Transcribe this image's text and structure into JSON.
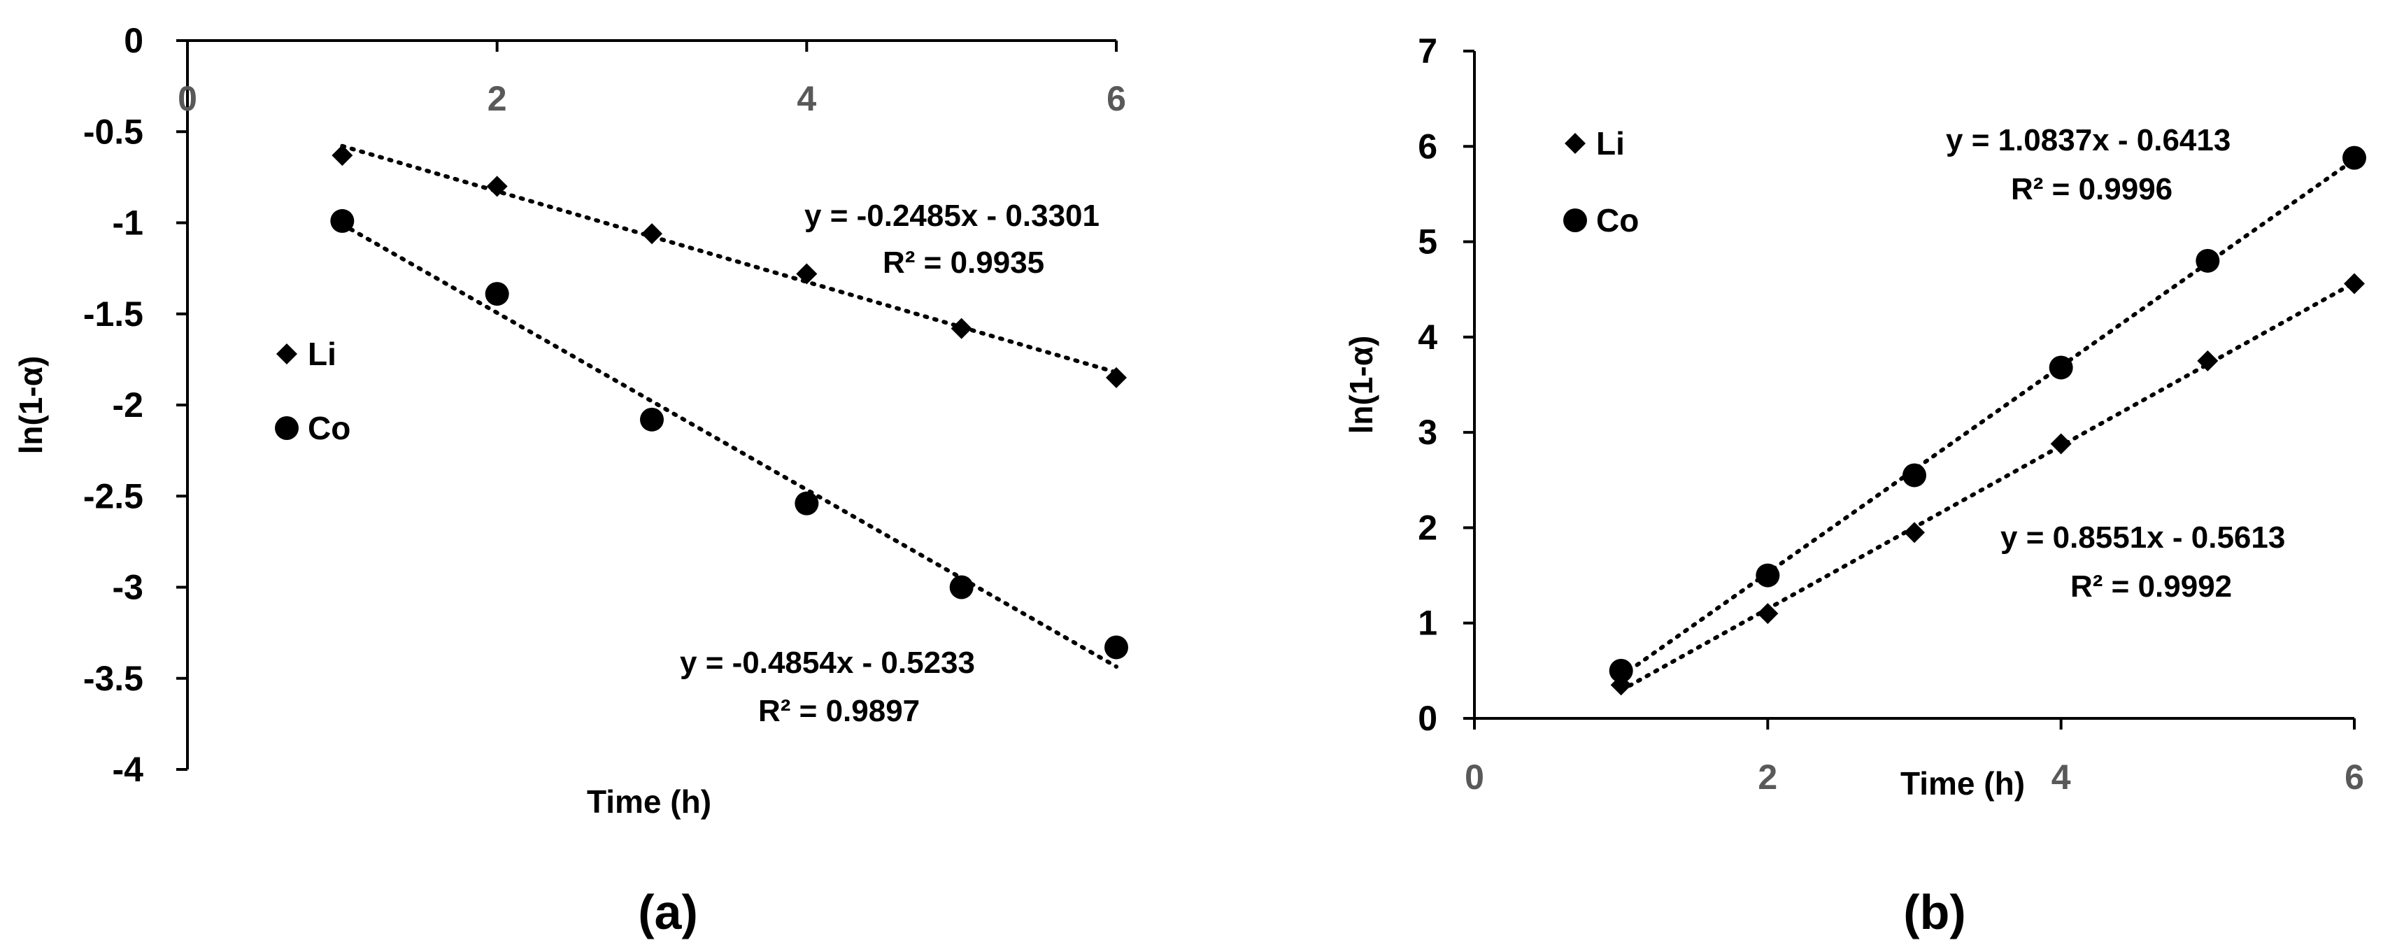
{
  "chart_data": [
    {
      "type": "scatter",
      "panel_label": "(a)",
      "xlabel": "Time (h)",
      "ylabel": "ln(1-α)",
      "xlim": [
        0,
        6
      ],
      "ylim": [
        -4,
        0
      ],
      "x_ticks": [
        "0",
        "2",
        "4",
        "6"
      ],
      "y_ticks": [
        "0",
        "-0.5",
        "-1",
        "-1.5",
        "-2",
        "-2.5",
        "-3",
        "-3.5",
        "-4"
      ],
      "legend_position": "left",
      "series": [
        {
          "name": "Li",
          "marker": "diamond",
          "x": [
            1,
            2,
            3,
            4,
            5,
            6
          ],
          "y": [
            -0.63,
            -0.8,
            -1.06,
            -1.28,
            -1.58,
            -1.85
          ],
          "trendline": {
            "slope": -0.2485,
            "intercept": -0.3301,
            "equation": "y = -0.2485x - 0.3301",
            "r2": "R² = 0.9935"
          }
        },
        {
          "name": "Co",
          "marker": "circle",
          "x": [
            1,
            2,
            3,
            4,
            5,
            6
          ],
          "y": [
            -0.99,
            -1.39,
            -2.08,
            -2.54,
            -3.0,
            -3.33
          ],
          "trendline": {
            "slope": -0.4854,
            "intercept": -0.5233,
            "equation": "y = -0.4854x - 0.5233",
            "r2": "R² = 0.9897"
          }
        }
      ]
    },
    {
      "type": "scatter",
      "panel_label": "(b)",
      "xlabel": "Time (h)",
      "ylabel": "ln(1-α)",
      "xlim": [
        0,
        6
      ],
      "ylim": [
        0,
        7
      ],
      "x_ticks": [
        "0",
        "2",
        "4",
        "6"
      ],
      "y_ticks": [
        "0",
        "1",
        "2",
        "3",
        "4",
        "5",
        "6",
        "7"
      ],
      "legend_position": "top-left",
      "series": [
        {
          "name": "Li",
          "marker": "diamond",
          "x": [
            1,
            2,
            3,
            4,
            5,
            6
          ],
          "y": [
            0.35,
            1.1,
            1.95,
            2.88,
            3.75,
            4.56
          ],
          "trendline": {
            "slope": 0.8551,
            "intercept": -0.5613,
            "equation": "y = 0.8551x - 0.5613",
            "r2": "R² = 0.9992"
          }
        },
        {
          "name": "Co",
          "marker": "circle",
          "x": [
            1,
            2,
            3,
            4,
            5,
            6
          ],
          "y": [
            0.5,
            1.5,
            2.55,
            3.68,
            4.8,
            5.88
          ],
          "trendline": {
            "slope": 1.0837,
            "intercept": -0.6413,
            "equation": "y = 1.0837x - 0.6413",
            "r2": "R² = 0.9996"
          }
        }
      ]
    }
  ]
}
